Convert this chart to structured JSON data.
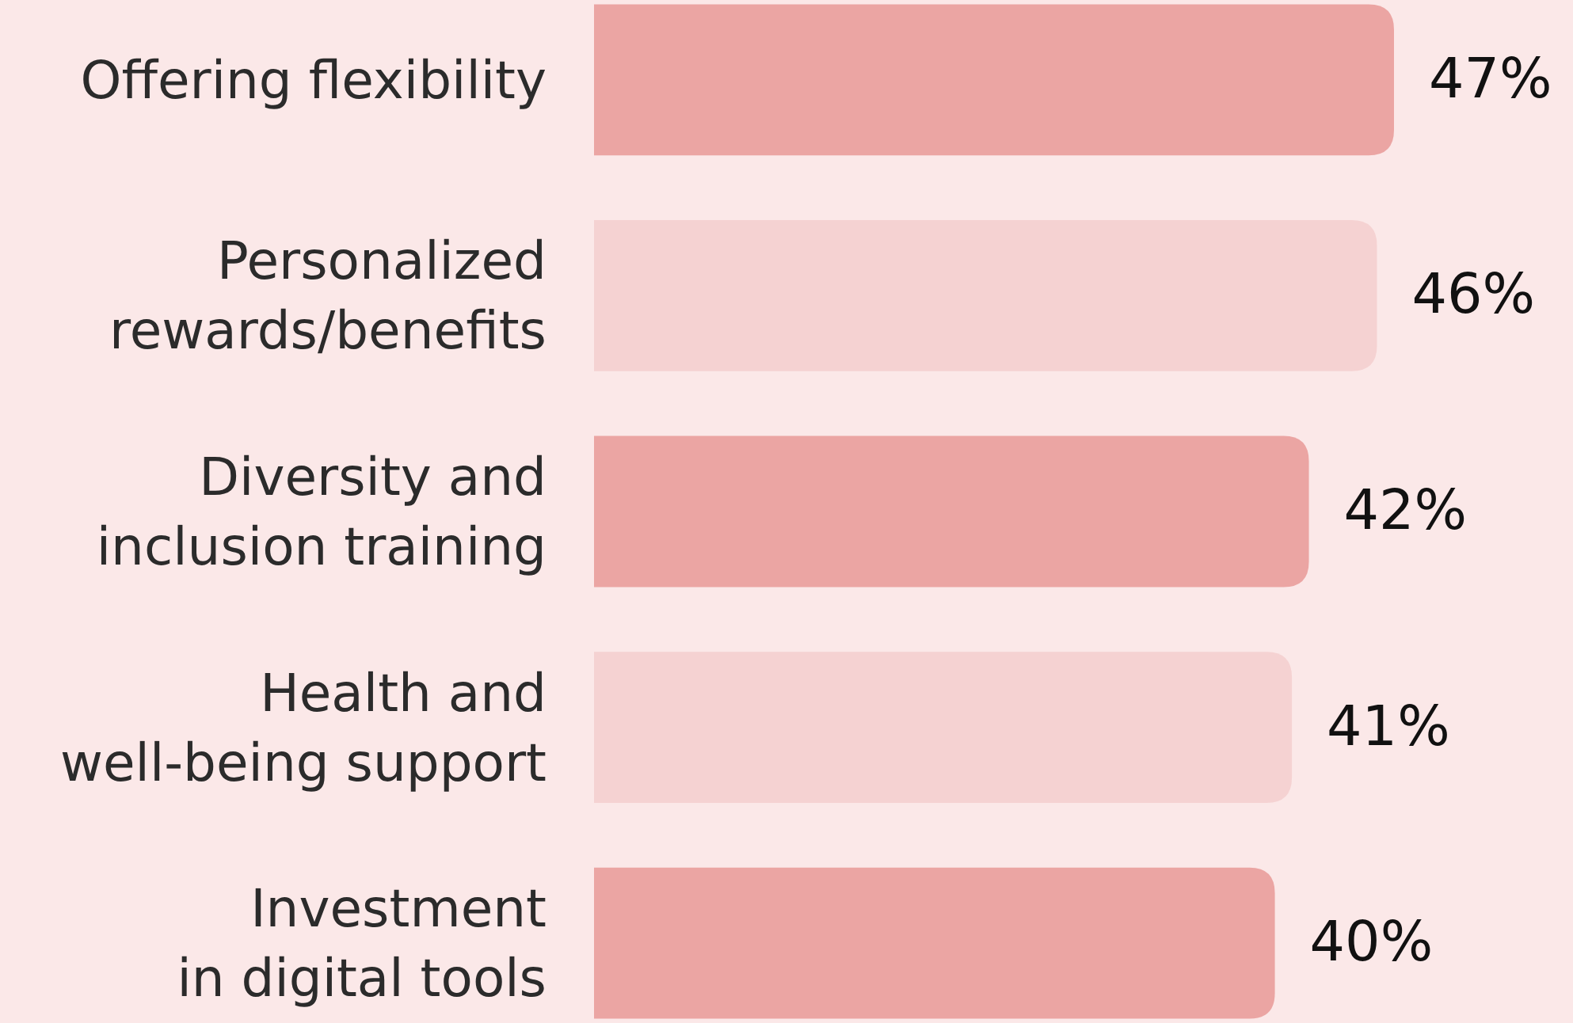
{
  "chart_data": {
    "type": "bar",
    "orientation": "horizontal",
    "categories": [
      "Offering flexibility",
      "Personalized\nrewards/benefits",
      "Diversity and\ninclusion training",
      "Health and\nwell-being support",
      "Investment\nin digital tools"
    ],
    "values": [
      47,
      46,
      42,
      41,
      40
    ],
    "colors": [
      "#eba5a3",
      "#f5d2d2",
      "#eba5a3",
      "#f5d2d2",
      "#eba5a3"
    ],
    "value_labels": [
      "47%",
      "46%",
      "42%",
      "41%",
      "40%"
    ],
    "tick_labels": "y"
  }
}
